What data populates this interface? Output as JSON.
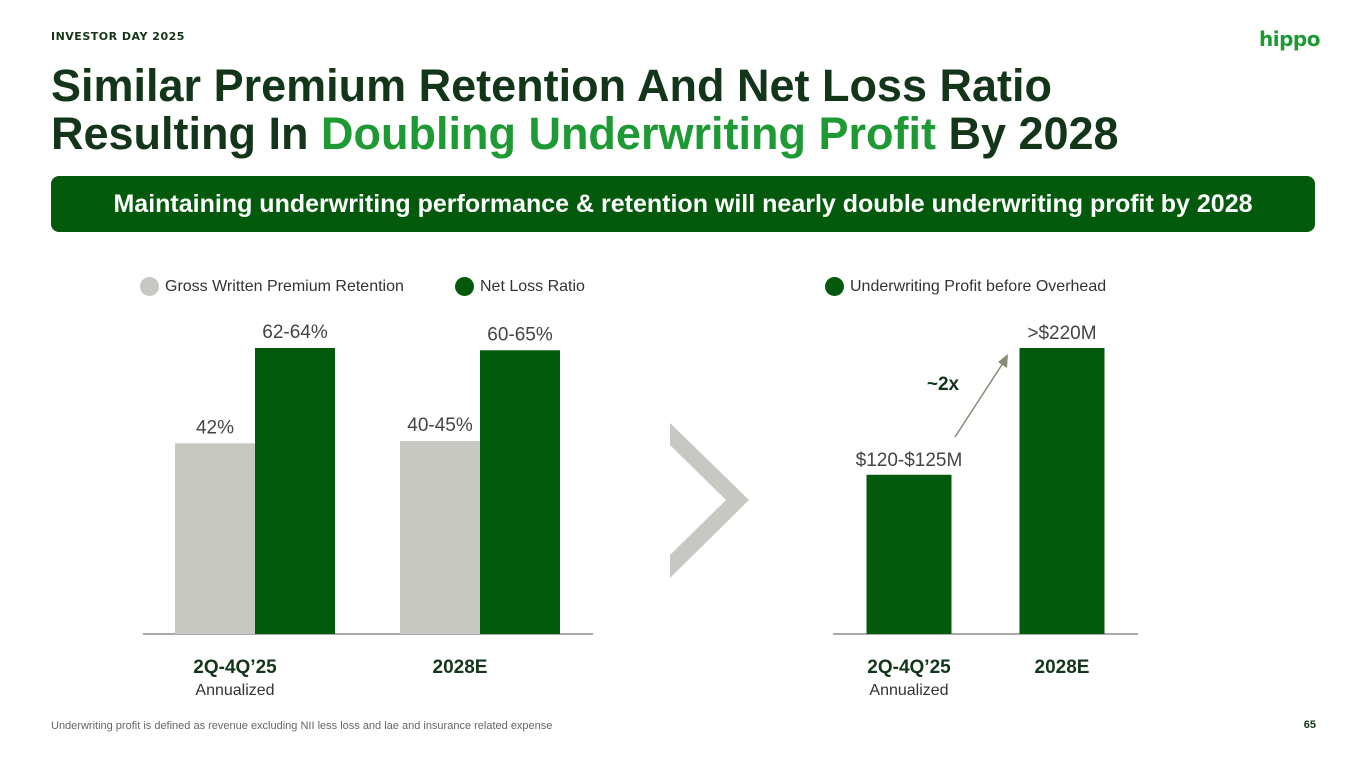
{
  "header": {
    "eyebrow": "INVESTOR DAY 2025",
    "logo": "hippo"
  },
  "title": {
    "line1": "Similar Premium Retention And Net Loss Ratio",
    "line2_pre": "Resulting In ",
    "line2_highlight": "Doubling Underwriting Profit",
    "line2_post": " By 2028"
  },
  "banner": "Maintaining underwriting performance & retention will nearly double underwriting profit by 2028",
  "colors": {
    "dark_green": "#045a0c",
    "bright_green": "#1e9a34",
    "gray_bar": "#c8c8c2",
    "title_text": "#13361a"
  },
  "chart_data": [
    {
      "type": "bar",
      "categories": [
        "2Q-4Q’25",
        "2028E"
      ],
      "category_sublabels": [
        "Annualized",
        ""
      ],
      "series": [
        {
          "name": "Gross Written Premium Retention",
          "values": [
            42,
            42.5
          ],
          "labels": [
            "42%",
            "40-45%"
          ],
          "color": "#c8c8c2"
        },
        {
          "name": "Net Loss Ratio",
          "values": [
            63,
            62.5
          ],
          "labels": [
            "62-64%",
            "60-65%"
          ],
          "color": "#045a0c"
        }
      ],
      "ylim": [
        0,
        63
      ]
    },
    {
      "type": "bar",
      "categories": [
        "2Q-4Q’25",
        "2028E"
      ],
      "category_sublabels": [
        "Annualized",
        ""
      ],
      "series": [
        {
          "name": "Underwriting Profit before Overhead",
          "values": [
            122.5,
            220
          ],
          "labels": [
            "$120-$125M",
            ">$220M"
          ],
          "color": "#045a0c"
        }
      ],
      "ylim": [
        0,
        220
      ],
      "annotation": "~2x"
    }
  ],
  "footnote": "Underwriting profit is defined as revenue excluding NII less loss and lae and insurance related expense",
  "page_number": "65",
  "icons": {
    "chevron": "chevron-right-icon",
    "arrow": "arrow-up-right-icon"
  }
}
